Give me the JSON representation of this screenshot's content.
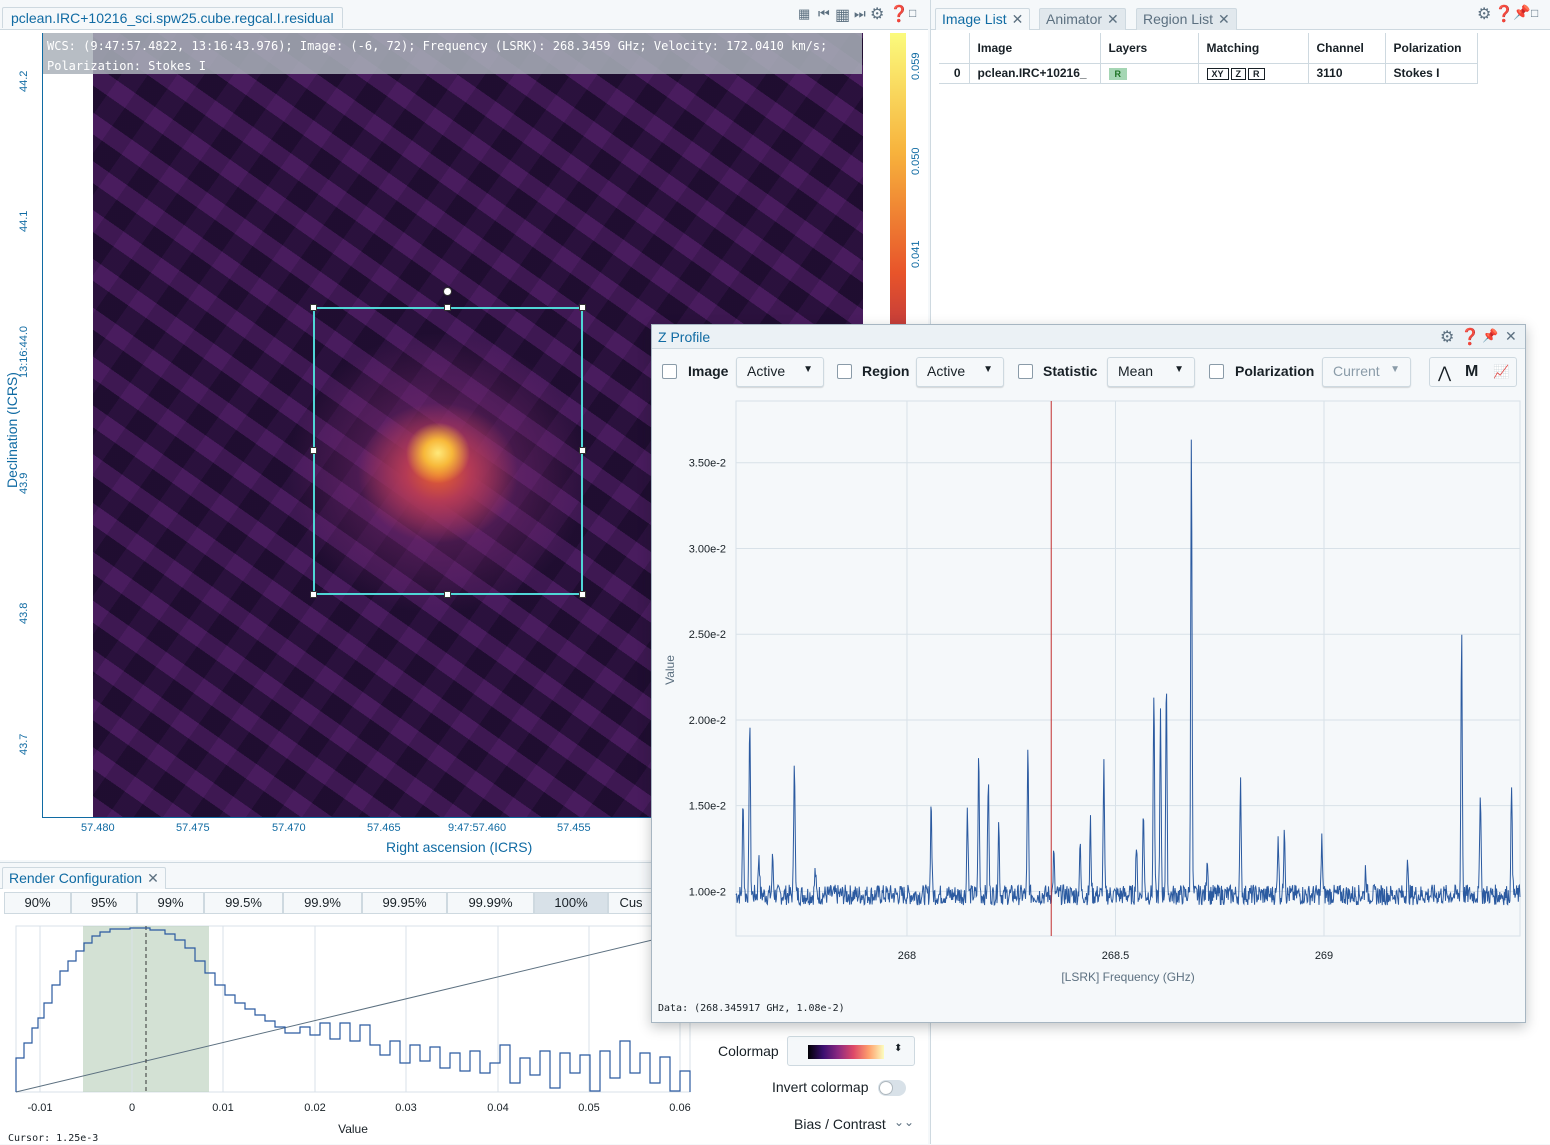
{
  "image_viewer": {
    "title": "pclean.IRC+10216_sci.spw25.cube.regcal.I.residual",
    "cursor_info_line1": "WCS: (9:47:57.4822, 13:16:43.976); Image: (-6, 72); Frequency (LSRK): 268.3459 GHz; Velocity: 172.0410 km/s;",
    "cursor_info_line2": "Polarization: Stokes I",
    "x_axis_title": "Right ascension (ICRS)",
    "y_axis_title": "Declination (ICRS)",
    "x_ticks": [
      "57.480",
      "57.475",
      "57.470",
      "57.465",
      "9:47:57.460",
      "57.455"
    ],
    "y_ticks": [
      "44.2",
      "44.1",
      "13:16:44.0",
      "43.9",
      "43.8",
      "43.7"
    ],
    "colorbar_ticks": [
      "0.059",
      "0.050",
      "0.041"
    ]
  },
  "right_panel": {
    "tabs": [
      {
        "label": "Image List"
      },
      {
        "label": "Animator"
      },
      {
        "label": "Region List"
      }
    ],
    "image_list": {
      "headers": [
        "Image",
        "Layers",
        "Matching",
        "Channel",
        "Polarization"
      ],
      "rows": [
        {
          "index": "0",
          "image": "pclean.IRC+10216_",
          "layer": "R",
          "matching": [
            "XY",
            "Z",
            "R"
          ],
          "channel": "3110",
          "polarization": "Stokes I"
        }
      ]
    }
  },
  "render_config": {
    "title": "Render Configuration",
    "percentiles": [
      "90%",
      "95%",
      "99%",
      "99.5%",
      "99.9%",
      "99.95%",
      "99.99%",
      "100%",
      "Cus"
    ],
    "selected_percentile": "100%",
    "x_ticks": [
      "-0.01",
      "0",
      "0.01",
      "0.02",
      "0.03",
      "0.04",
      "0.05",
      "0.06"
    ],
    "x_label": "Value",
    "cursor_text": "Cursor: 1.25e-3",
    "colormap_label": "Colormap",
    "invert_label": "Invert colormap",
    "bias_label": "Bias / Contrast"
  },
  "z_profile": {
    "title": "Z Profile",
    "controls": [
      {
        "label": "Image",
        "value": "Active"
      },
      {
        "label": "Region",
        "value": "Active"
      },
      {
        "label": "Statistic",
        "value": "Mean"
      },
      {
        "label": "Polarization",
        "value": "Current"
      }
    ],
    "tool_buttons": [
      "M"
    ],
    "status_text": "Data: (268.345917 GHz, 1.08e-2)"
  },
  "chart_data": {
    "type": "line",
    "xlabel": "[LSRK] Frequency (GHz)",
    "ylabel": "Value",
    "xlim": [
      267.59,
      269.47
    ],
    "ylim": [
      0.0074,
      0.0386
    ],
    "x_ticks": [
      "268",
      "268.5",
      "269"
    ],
    "y_ticks": [
      "1.00e-2",
      "1.50e-2",
      "2.00e-2",
      "2.50e-2",
      "3.00e-2",
      "3.50e-2"
    ],
    "grid": true,
    "cursor_frequency": 268.3459,
    "baseline": 0.0098,
    "series": [
      {
        "peaks": [
          [
            267.607,
            0.0155
          ],
          [
            267.623,
            0.0203
          ],
          [
            267.645,
            0.0123
          ],
          [
            267.678,
            0.012
          ],
          [
            267.73,
            0.0181
          ],
          [
            267.78,
            0.0112
          ],
          [
            268.058,
            0.0153
          ],
          [
            268.145,
            0.015
          ],
          [
            268.172,
            0.0179
          ],
          [
            268.195,
            0.0165
          ],
          [
            268.22,
            0.014
          ],
          [
            268.29,
            0.0182
          ],
          [
            268.352,
            0.0122
          ],
          [
            268.415,
            0.0127
          ],
          [
            268.44,
            0.014
          ],
          [
            268.472,
            0.0173
          ],
          [
            268.55,
            0.0127
          ],
          [
            268.567,
            0.0148
          ],
          [
            268.592,
            0.0217
          ],
          [
            268.608,
            0.0202
          ],
          [
            268.622,
            0.0221
          ],
          [
            268.682,
            0.0373
          ],
          [
            268.72,
            0.0122
          ],
          [
            268.8,
            0.0163
          ],
          [
            268.89,
            0.0135
          ],
          [
            268.905,
            0.0141
          ],
          [
            268.995,
            0.013
          ],
          [
            269.1,
            0.0114
          ],
          [
            269.2,
            0.0115
          ],
          [
            269.33,
            0.0253
          ],
          [
            269.375,
            0.0162
          ],
          [
            269.45,
            0.0163
          ]
        ]
      }
    ]
  }
}
